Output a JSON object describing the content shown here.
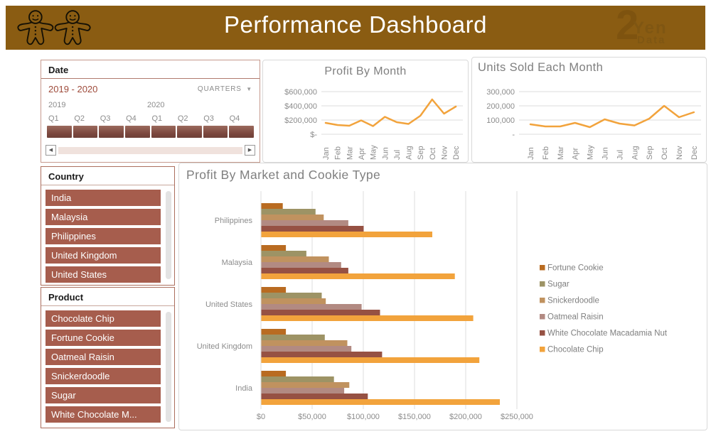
{
  "header": {
    "title": "Performance Dashboard",
    "brand_numeral": "2",
    "brand_line1": "Yen",
    "brand_line2": "Data"
  },
  "date_slicer": {
    "title": "Date",
    "range_label": "2019 - 2020",
    "granularity_label": "QUARTERS",
    "years": [
      "2019",
      "2020"
    ],
    "quarters": [
      "Q1",
      "Q2",
      "Q3",
      "Q4",
      "Q1",
      "Q2",
      "Q3",
      "Q4"
    ]
  },
  "country_slicer": {
    "title": "Country",
    "items": [
      "India",
      "Malaysia",
      "Philippines",
      "United Kingdom",
      "United States"
    ]
  },
  "product_slicer": {
    "title": "Product",
    "items": [
      "Chocolate Chip",
      "Fortune Cookie",
      "Oatmeal Raisin",
      "Snickerdoodle",
      "Sugar",
      "White Chocolate M..."
    ]
  },
  "colors": {
    "header_bg": "#8A5C12",
    "slicer_item_bg": "#A65D4D",
    "line_color": "#F2A33C",
    "axis_text": "#8C8C8C",
    "title_text": "#7F7F7F"
  },
  "chart_data": [
    {
      "type": "line",
      "title": "Profit By Month",
      "x": [
        "Jan",
        "Feb",
        "Mar",
        "Apr",
        "May",
        "Jun",
        "Jul",
        "Aug",
        "Sep",
        "Oct",
        "Nov",
        "Dec"
      ],
      "values": [
        160000,
        130000,
        120000,
        195000,
        115000,
        245000,
        170000,
        145000,
        260000,
        490000,
        290000,
        390000
      ],
      "yticks": [
        "$-",
        "$200,000",
        "$400,000",
        "$600,000"
      ],
      "ylim": [
        0,
        600000
      ],
      "grid": true,
      "color": "#F2A33C"
    },
    {
      "type": "line",
      "title": "Units Sold Each Month",
      "x": [
        "Jan",
        "Feb",
        "Mar",
        "Apr",
        "May",
        "Jun",
        "Jul",
        "Aug",
        "Sep",
        "Oct",
        "Nov",
        "Dec"
      ],
      "values": [
        70000,
        55000,
        55000,
        80000,
        50000,
        105000,
        75000,
        62000,
        110000,
        200000,
        120000,
        155000
      ],
      "yticks": [
        "-",
        "100,000",
        "200,000",
        "300,000"
      ],
      "ylim": [
        0,
        300000
      ],
      "grid": true,
      "color": "#F2A33C"
    },
    {
      "type": "bar",
      "title": "Profit By Market and Cookie Type",
      "orientation": "horizontal",
      "categories": [
        "Philippines",
        "Malaysia",
        "United States",
        "United Kingdom",
        "India"
      ],
      "series": [
        {
          "name": "Fortune Cookie",
          "color": "#B96B21",
          "values": [
            21000,
            24000,
            24000,
            24000,
            24000
          ]
        },
        {
          "name": "Sugar",
          "color": "#9D9365",
          "values": [
            53000,
            44000,
            59000,
            62000,
            71000
          ]
        },
        {
          "name": "Snickerdoodle",
          "color": "#C0925F",
          "values": [
            61000,
            66000,
            63000,
            84000,
            86000
          ]
        },
        {
          "name": "Oatmeal Raisin",
          "color": "#B28A82",
          "values": [
            85000,
            78000,
            98000,
            88000,
            81000
          ]
        },
        {
          "name": "White Chocolate Macadamia Nut",
          "color": "#965143",
          "values": [
            100000,
            85000,
            116000,
            118000,
            104000
          ]
        },
        {
          "name": "Chocolate Chip",
          "color": "#F2A33C",
          "values": [
            167000,
            189000,
            207000,
            213000,
            233000
          ]
        }
      ],
      "xticks": [
        "$0",
        "$50,000",
        "$100,000",
        "$150,000",
        "$200,000",
        "$250,000"
      ],
      "xlim": [
        0,
        250000
      ],
      "legend_position": "right",
      "grid": true
    }
  ]
}
